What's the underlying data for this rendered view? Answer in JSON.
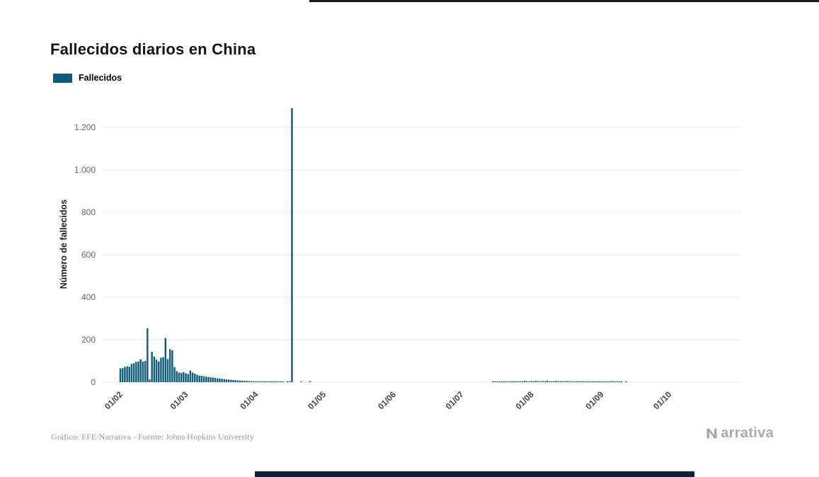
{
  "page": {
    "title": "Fallecidos diarios en China",
    "credit": "Gráfico: EFE/Narrativa - Fuente: Johns Hopkins University"
  },
  "brand": {
    "name": "Narrativa",
    "logo_text_after_icon": "arrativa",
    "color": "#a9a9a9"
  },
  "legend": {
    "label": "Fallecidos",
    "color": "#0f5b7a"
  },
  "chart_data": {
    "type": "bar",
    "title": "Fallecidos diarios en China",
    "series_name": "Fallecidos",
    "xlabel": "",
    "ylabel": "Número de fallecidos",
    "ylim": [
      0,
      1300
    ],
    "grid": "horizontal-only",
    "legend_position": "top-left",
    "bar_color": "#0f5b7a",
    "y_ticks": [
      0,
      200,
      400,
      600,
      800,
      1000,
      1200
    ],
    "y_tick_labels": [
      "0",
      "200",
      "400",
      "600",
      "800",
      "1.000",
      "1.200"
    ],
    "x_tick_labels": [
      "01/02",
      "01/03",
      "01/04",
      "01/05",
      "01/06",
      "01/07",
      "01/08",
      "01/09",
      "01/10"
    ],
    "max_value": 1290,
    "max_value_date": "17/04",
    "series_by_month": [
      {
        "month_label": "01/02",
        "values": [
          65,
          66,
          72,
          75,
          73,
          86,
          89,
          95,
          97,
          108,
          97,
          100,
          254,
          13,
          143,
          121,
          106,
          98,
          115,
          118,
          208,
          109,
          155,
          150,
          71,
          52,
          45,
          44,
          47
        ]
      },
      {
        "month_label": "01/03",
        "values": [
          42,
          38,
          55,
          45,
          40,
          35,
          31,
          30,
          28,
          26,
          24,
          23,
          22,
          20,
          18,
          17,
          16,
          14,
          13,
          12,
          11,
          10,
          9,
          8,
          8,
          7,
          6,
          6,
          5,
          5,
          4
        ]
      },
      {
        "month_label": "01/04",
        "values": [
          3,
          4,
          3,
          2,
          2,
          2,
          1,
          2,
          1,
          1,
          1,
          1,
          1,
          0,
          1,
          1,
          1290,
          0,
          0,
          0,
          1,
          0,
          0,
          0,
          1,
          0,
          0,
          0,
          0,
          0
        ]
      },
      {
        "month_label": "01/05",
        "values": [
          0,
          0,
          0,
          0,
          0,
          0,
          0,
          0,
          0,
          0,
          0,
          0,
          0,
          0,
          0,
          0,
          0,
          0,
          0,
          0,
          0,
          0,
          0,
          0,
          0,
          0,
          0,
          0,
          0,
          0,
          0
        ]
      },
      {
        "month_label": "01/06",
        "values": [
          0,
          0,
          0,
          0,
          0,
          0,
          0,
          0,
          0,
          0,
          0,
          0,
          0,
          0,
          0,
          0,
          0,
          0,
          0,
          0,
          0,
          0,
          0,
          0,
          0,
          0,
          0,
          0,
          0,
          0
        ]
      },
      {
        "month_label": "01/07",
        "values": [
          0,
          0,
          0,
          0,
          0,
          0,
          0,
          0,
          0,
          0,
          0,
          0,
          0,
          0,
          1,
          2,
          1,
          3,
          2,
          1,
          4,
          2,
          3,
          5,
          2,
          3,
          4,
          2,
          6,
          3,
          4
        ]
      },
      {
        "month_label": "01/08",
        "values": [
          5,
          3,
          6,
          4,
          2,
          5,
          3,
          7,
          4,
          2,
          3,
          6,
          2,
          4,
          3,
          2,
          5,
          2,
          3,
          4,
          2,
          3,
          2,
          4,
          2,
          3,
          2,
          2,
          3,
          2,
          2
        ]
      },
      {
        "month_label": "01/09",
        "values": [
          3,
          2,
          4,
          2,
          3,
          5,
          2,
          3,
          2,
          1,
          0,
          1,
          0,
          0,
          0,
          0,
          0,
          0,
          0,
          0,
          0,
          0,
          0,
          0,
          0,
          0,
          0,
          0,
          0,
          0
        ]
      },
      {
        "month_label": "01/10",
        "values": [
          0,
          0,
          0,
          0,
          0,
          0,
          0,
          0,
          0,
          0,
          0,
          0
        ]
      }
    ]
  }
}
